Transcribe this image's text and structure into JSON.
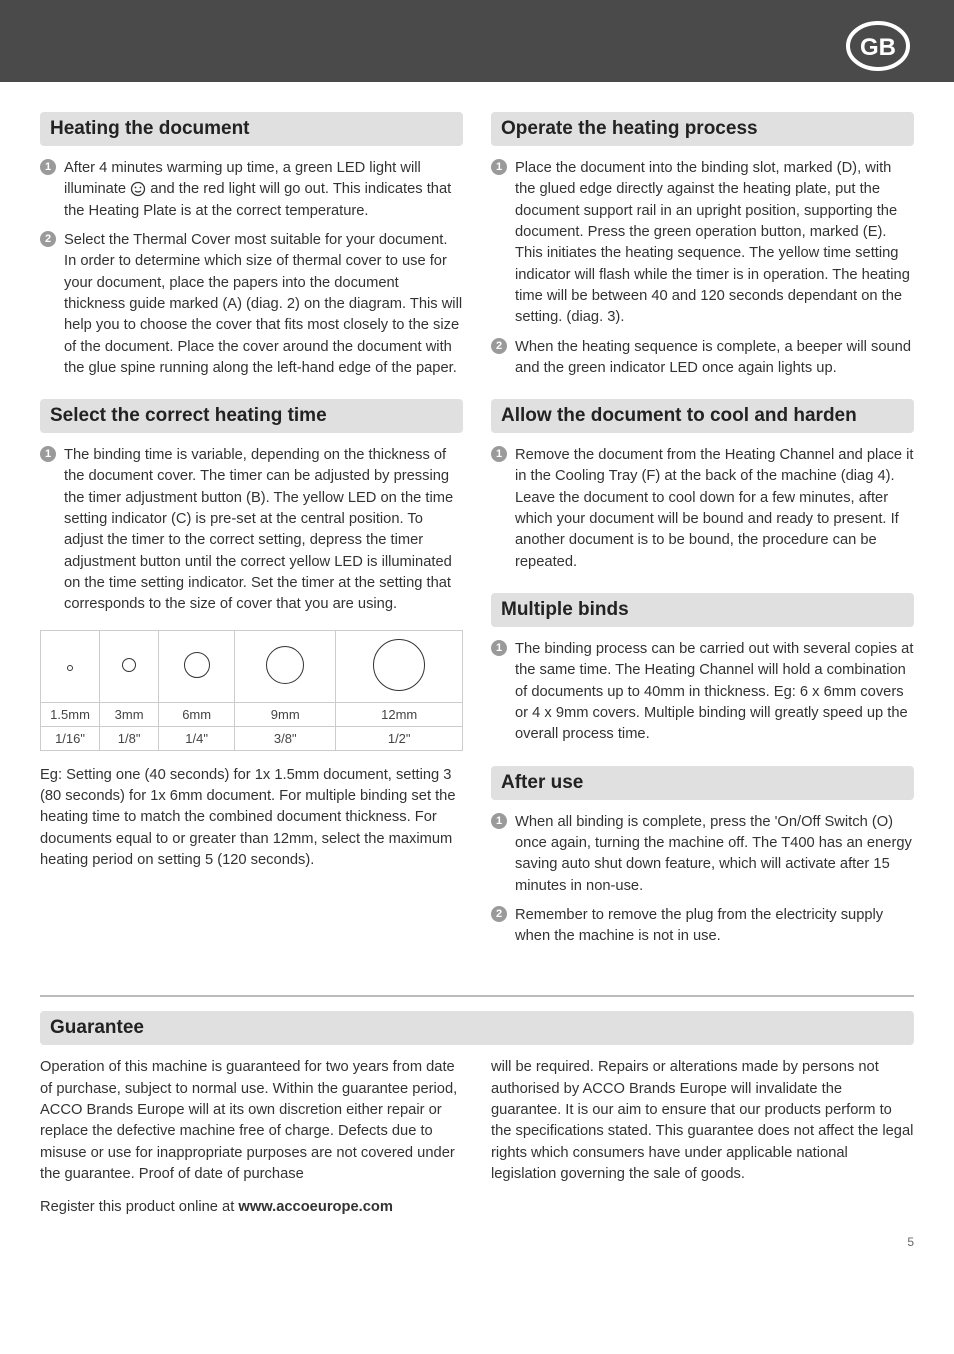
{
  "badge": {
    "label": "GB"
  },
  "left": {
    "s1": {
      "title": "Heating the document",
      "items": [
        "After 4 minutes warming up time, a green LED light will illuminate  and the red light will go out. This indicates that the Heating Plate is at the correct temperature.",
        "Select the Thermal Cover most suitable for your document. In order to determine which size of thermal cover to use for your document, place the papers into the document thickness guide marked (A) (diag. 2) on the diagram. This will help you to choose the cover that fits most closely to the size of the document. Place the cover around the document with the glue spine running along the left-hand edge of the paper."
      ]
    },
    "s2": {
      "title": "Select the correct heating time",
      "items": [
        "The binding time is variable, depending on the thickness of the document cover. The timer can be adjusted by pressing the timer adjustment button (B). The yellow LED on the time setting indicator (C) is pre-set at the central position. To adjust the timer to the correct setting, depress the timer adjustment button until the correct yellow LED is illuminated on the time setting indicator. Set the timer at the setting that corresponds to the size of cover that you are using."
      ],
      "table": {
        "circle_diameters": [
          6,
          14,
          26,
          38,
          52
        ],
        "col_widths_pct": [
          14,
          14,
          18,
          24,
          30
        ],
        "mm_row": [
          "1.5mm",
          "3mm",
          "6mm",
          "9mm",
          "12mm"
        ],
        "in_row": [
          "1/16\"",
          "1/8\"",
          "1/4\"",
          "3/8\"",
          "1/2\""
        ]
      },
      "after_table": "Eg: Setting one (40 seconds) for 1x 1.5mm document, setting 3 (80 seconds) for 1x 6mm document. For multiple binding set the heating time to match the combined document thickness. For documents equal to or greater than 12mm, select the maximum heating period on setting 5 (120 seconds)."
    }
  },
  "right": {
    "s1": {
      "title": "Operate the heating process",
      "items": [
        "Place the document into the binding slot, marked (D), with the glued edge directly against the heating plate, put the document support rail in an upright position, supporting the document. Press the green operation button, marked (E). This initiates the heating sequence. The yellow time setting indicator will flash while the timer is in operation. The heating time will be between 40 and 120 seconds dependant on the setting. (diag. 3).",
        "When the heating sequence is complete, a beeper will sound and the green indicator LED once again lights up."
      ]
    },
    "s2": {
      "title": "Allow the document to cool and harden",
      "items": [
        "Remove the document from the Heating Channel and place it in the Cooling Tray (F) at the back of the machine (diag 4). Leave the document to cool down for a few minutes, after which your document will be bound and ready to present. If another document is to be bound, the procedure can be repeated."
      ]
    },
    "s3": {
      "title": "Multiple binds",
      "items": [
        "The binding process can be carried out with several copies at the same time. The Heating Channel will hold a combination of documents up to 40mm in thickness. Eg: 6 x 6mm covers or 4 x 9mm covers. Multiple binding will greatly speed up the overall process time."
      ]
    },
    "s4": {
      "title": "After use",
      "items": [
        "When all binding is complete, press the 'On/Off Switch (O) once again, turning the machine off. The T400 has an energy saving auto shut down feature, which will activate after 15 minutes in non-use.",
        "Remember to remove the plug from the electricity supply when the machine is not in use."
      ]
    }
  },
  "guarantee": {
    "title": "Guarantee",
    "col1": "Operation of this machine is guaranteed for two years from date of purchase, subject to normal use. Within the guarantee period, ACCO Brands Europe will at its own discretion either repair or replace the defective machine free of charge. Defects due to misuse or use for inappropriate purposes are not covered under the guarantee. Proof of date of purchase",
    "col2": "will be required. Repairs or alterations made by persons not authorised by ACCO Brands Europe will invalidate the guarantee. It is our aim to ensure that our products perform to the specifications stated. This guarantee does not affect the legal rights which consumers have under applicable national legislation governing the sale of goods.",
    "register_prefix": "Register this product online at ",
    "register_url": "www.accoeurope.com"
  },
  "page_number": "5",
  "colors": {
    "header_bg": "#4a4a4a",
    "section_bg": "#e0e0e0",
    "bullet_bg": "#9a9a9a"
  }
}
